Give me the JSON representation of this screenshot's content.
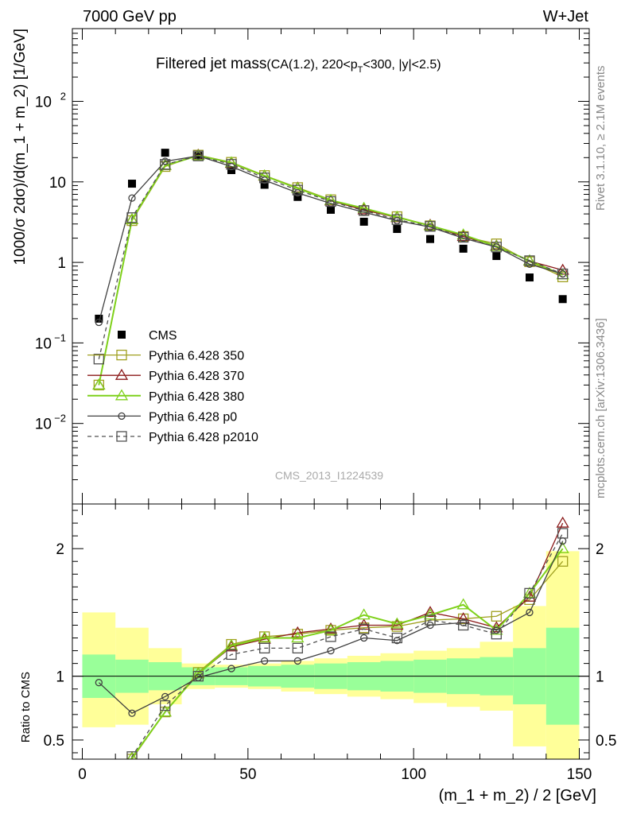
{
  "header": {
    "left": "7000 GeV pp",
    "right": "W+Jet"
  },
  "plot_title": {
    "main": "Filtered jet mass",
    "cuts": "(CA(1.2), 220<p",
    "cuts_sub": "T",
    "cuts_rest": "<300, |y|<2.5)"
  },
  "analysis_id": "CMS_2013_I1224539",
  "side_labels": {
    "top": "Rivet 3.1.10, ≥ 2.1M events",
    "bottom": "mcplots.cern.ch [arXiv:1306.3436]"
  },
  "axes": {
    "ylabel_main": "1000/σ 2dσ)/d(m_1 + m_2) [1/GeV]",
    "ylabel_ratio": "Ratio to CMS",
    "xlabel": "(m_1 + m_2) / 2 [GeV]"
  },
  "colors": {
    "cms": "#000000",
    "p350": "#a0a020",
    "p370": "#8b1a1a",
    "p380": "#7fd11b",
    "p0": "#404040",
    "p2010": "#505050",
    "band_inner": "#99ff99",
    "band_outer": "#ffff99"
  },
  "chart_data": {
    "type": "line",
    "x": [
      5,
      15,
      25,
      35,
      45,
      55,
      65,
      75,
      85,
      95,
      105,
      115,
      125,
      135,
      145
    ],
    "xlim": [
      -3,
      153
    ],
    "x_ticks": [
      "0",
      "50",
      "100",
      "150"
    ],
    "main": {
      "ylim_log": [
        0.001,
        800
      ],
      "y_ticks": [
        "10^-2",
        "10^-1",
        "1",
        "10",
        "10^2"
      ],
      "scale": "log"
    },
    "ratio": {
      "ylim": [
        0.35,
        2.35
      ],
      "y_ticks": [
        "0.5",
        "1",
        "2"
      ]
    },
    "legend_position": "middle-left",
    "series": [
      {
        "name": "CMS",
        "key": "cms",
        "marker": "square-filled",
        "values": [
          0.2,
          9.5,
          23,
          21,
          14,
          9.2,
          6.5,
          4.5,
          3.2,
          2.6,
          1.95,
          1.48,
          1.2,
          0.65,
          0.35
        ]
      },
      {
        "name": "Pythia 6.428 350",
        "key": "p350",
        "marker": "square-open",
        "values": [
          0.03,
          3.3,
          15.5,
          21.5,
          17.5,
          12,
          8.5,
          6.0,
          4.4,
          3.7,
          2.85,
          2.1,
          1.7,
          1.02,
          0.66
        ]
      },
      {
        "name": "Pythia 6.428 370",
        "key": "p370",
        "marker": "triangle-open",
        "values": [
          0.03,
          3.4,
          16,
          21.5,
          17,
          11.8,
          8.4,
          5.8,
          4.5,
          3.6,
          2.9,
          2.1,
          1.6,
          1.04,
          0.8
        ]
      },
      {
        "name": "Pythia 6.428 380",
        "key": "p380",
        "marker": "triangle-open",
        "values": [
          0.03,
          3.4,
          16,
          21.2,
          17.3,
          11.9,
          8.3,
          5.9,
          4.7,
          3.65,
          2.85,
          2.2,
          1.58,
          1.05,
          0.7
        ]
      },
      {
        "name": "Pythia 6.428 p0",
        "key": "p0",
        "marker": "circle-open",
        "values": [
          0.18,
          6.3,
          18,
          21,
          15.5,
          10.5,
          7.3,
          5.4,
          4.2,
          3.3,
          2.75,
          2.0,
          1.55,
          0.95,
          0.72
        ]
      },
      {
        "name": "Pythia 6.428 p2010",
        "key": "p2010",
        "marker": "square-open",
        "dashed": true,
        "values": [
          0.063,
          3.6,
          16.5,
          21,
          16.5,
          11.2,
          7.9,
          5.7,
          4.4,
          3.4,
          2.8,
          2.05,
          1.55,
          1.05,
          0.72
        ]
      }
    ],
    "ratios": {
      "p350": [
        null,
        0.35,
        0.72,
        1.03,
        1.25,
        1.31,
        1.33,
        1.36,
        1.38,
        1.39,
        1.44,
        1.45,
        1.47,
        1.6,
        1.9
      ],
      "p370": [
        null,
        0.36,
        0.72,
        1.02,
        1.23,
        1.29,
        1.34,
        1.37,
        1.4,
        1.4,
        1.5,
        1.45,
        1.38,
        1.62,
        2.2
      ],
      "p380": [
        null,
        0.36,
        0.72,
        1.02,
        1.24,
        1.3,
        1.3,
        1.36,
        1.48,
        1.41,
        1.48,
        1.56,
        1.36,
        1.65,
        2.0
      ],
      "p0": [
        0.95,
        0.71,
        0.84,
        0.99,
        1.06,
        1.12,
        1.12,
        1.2,
        1.3,
        1.28,
        1.4,
        1.42,
        1.36,
        1.5,
        2.06
      ],
      "p2010": [
        null,
        0.37,
        0.77,
        1.0,
        1.17,
        1.22,
        1.22,
        1.31,
        1.37,
        1.3,
        1.44,
        1.4,
        1.33,
        1.65,
        2.12
      ]
    },
    "bands": {
      "edges": [
        0,
        10,
        20,
        30,
        40,
        50,
        60,
        70,
        80,
        90,
        100,
        110,
        120,
        130,
        140,
        150
      ],
      "inner_lo": [
        0.83,
        0.87,
        0.89,
        0.93,
        0.93,
        0.92,
        0.91,
        0.9,
        0.89,
        0.88,
        0.87,
        0.86,
        0.85,
        0.78,
        0.62
      ],
      "inner_hi": [
        1.17,
        1.13,
        1.11,
        1.07,
        1.07,
        1.08,
        1.09,
        1.1,
        1.11,
        1.12,
        1.13,
        1.14,
        1.15,
        1.22,
        1.38
      ],
      "outer_lo": [
        0.6,
        0.62,
        0.78,
        0.9,
        0.91,
        0.9,
        0.88,
        0.86,
        0.84,
        0.82,
        0.79,
        0.76,
        0.73,
        0.45,
        0.2
      ],
      "outer_hi": [
        1.5,
        1.38,
        1.22,
        1.1,
        1.09,
        1.1,
        1.12,
        1.14,
        1.16,
        1.18,
        1.2,
        1.22,
        1.27,
        1.55,
        1.98
      ]
    }
  }
}
